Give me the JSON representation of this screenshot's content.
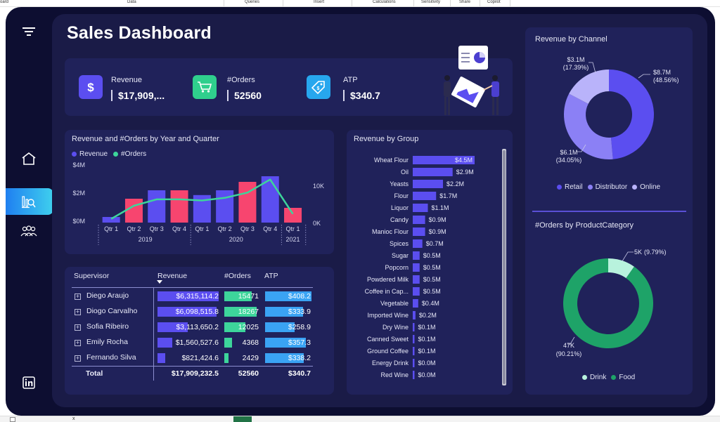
{
  "host": {
    "ribbon_tabs": [
      "oard",
      "Data",
      "Queries",
      "Insert",
      "Calculations",
      "Sensitivity",
      "Share",
      "Copilot"
    ],
    "status_close": "x"
  },
  "colors": {
    "frame_bg": "#0d0e31",
    "canvas_bg": "#1a1b47",
    "card_bg": "#20225a",
    "revenue": "#5b4ef0",
    "orders": "#3dd59b",
    "atp": "#3aa3f4",
    "pink": "#f7456f",
    "food": "#1ea368",
    "drink": "#b8f2dd"
  },
  "nav": [
    "menu-icon",
    "home-icon",
    "analytics-icon",
    "users-icon",
    "linkedin-icon"
  ],
  "dashboard": {
    "title": "Sales Dashboard"
  },
  "kpis": [
    {
      "label": "Revenue",
      "value": "$17,909,...",
      "icon": "dollar-icon",
      "color": "#5b4ef0"
    },
    {
      "label": "#Orders",
      "value": "52560",
      "icon": "cart-icon",
      "color": "#2fcf8d"
    },
    {
      "label": "ATP",
      "value": "$340.7",
      "icon": "tag-icon",
      "color": "#27a7ee"
    }
  ],
  "combo_chart": {
    "title": "Revenue and #Orders by Year and Quarter",
    "legend": [
      {
        "name": "Revenue",
        "color": "#5b4ef0"
      },
      {
        "name": "#Orders",
        "color": "#3dd59b"
      }
    ],
    "y_left_ticks": [
      "$4M",
      "$2M",
      "$0M"
    ],
    "y_right_ticks": [
      "10K",
      "0K"
    ],
    "quarters": [
      "Qtr 1",
      "Qtr 2",
      "Qtr 3",
      "Qtr 4",
      "Qtr 1",
      "Qtr 2",
      "Qtr 3",
      "Qtr 4",
      "Qtr 1"
    ],
    "years": [
      "2019",
      "2020",
      "2021"
    ]
  },
  "chart_data": [
    {
      "type": "bar",
      "title": "Revenue and #Orders by Year and Quarter",
      "categories": [
        "2019 Qtr 1",
        "2019 Qtr 2",
        "2019 Qtr 3",
        "2019 Qtr 4",
        "2020 Qtr 1",
        "2020 Qtr 2",
        "2020 Qtr 3",
        "2020 Qtr 4",
        "2021 Qtr 1"
      ],
      "series": [
        {
          "name": "Revenue",
          "kind": "bar",
          "values": [
            0.4,
            1.7,
            2.3,
            2.3,
            1.96,
            2.3,
            2.9,
            3.3,
            1.05
          ],
          "colors": [
            "#5b4ef0",
            "#f7456f",
            "#5b4ef0",
            "#f7456f",
            "#5b4ef0",
            "#5b4ef0",
            "#f7456f",
            "#5b4ef0",
            "#f7456f"
          ]
        },
        {
          "name": "#Orders",
          "kind": "line",
          "values": [
            1000,
            4500,
            6200,
            6200,
            5900,
            6600,
            8000,
            11500,
            2300
          ]
        }
      ],
      "ylim": [
        0,
        4
      ],
      "y2lim": [
        0,
        15000
      ]
    },
    {
      "type": "bar",
      "title": "Revenue by Group",
      "orientation": "horizontal",
      "categories": [
        "Wheat Flour",
        "Oil",
        "Yeasts",
        "Flour",
        "Liquor",
        "Candy",
        "Manioc Flour",
        "Spices",
        "Sugar",
        "Popcorn",
        "Powdered Milk",
        "Coffee in Cap...",
        "Vegetable",
        "Imported Wine",
        "Dry Wine",
        "Canned Sweet",
        "Ground Coffee",
        "Energy Drink",
        "Red Wine"
      ],
      "values": [
        4.5,
        2.9,
        2.2,
        1.7,
        1.1,
        0.9,
        0.9,
        0.7,
        0.5,
        0.5,
        0.5,
        0.5,
        0.4,
        0.2,
        0.1,
        0.1,
        0.1,
        0.0,
        0.0
      ],
      "labels": [
        "$4.5M",
        "$2.9M",
        "$2.2M",
        "$1.7M",
        "$1.1M",
        "$0.9M",
        "$0.9M",
        "$0.7M",
        "$0.5M",
        "$0.5M",
        "$0.5M",
        "$0.5M",
        "$0.4M",
        "$0.2M",
        "$0.1M",
        "$0.1M",
        "$0.1M",
        "$0.0M",
        "$0.0M"
      ]
    },
    {
      "type": "pie",
      "title": "Revenue by Channel",
      "categories": [
        "Retail",
        "Distributor",
        "Online"
      ],
      "values": [
        48.56,
        34.05,
        17.39
      ],
      "labels": [
        {
          "value": "$8.7M",
          "pct": "(48.56%)"
        },
        {
          "value": "$6.1M",
          "pct": "(34.05%)"
        },
        {
          "value": "$3.1M",
          "pct": "(17.39%)"
        }
      ],
      "colors": [
        "#5b4ef0",
        "#8b80f5",
        "#b9b3fa"
      ]
    },
    {
      "type": "pie",
      "title": "#Orders by ProductCategory",
      "categories": [
        "Drink",
        "Food"
      ],
      "values": [
        9.79,
        90.21
      ],
      "labels": [
        {
          "value": "5K",
          "pct": "(9.79%)"
        },
        {
          "value": "47K",
          "pct": "(90.21%)"
        }
      ],
      "colors": [
        "#b8f2dd",
        "#1ea368"
      ]
    }
  ],
  "table": {
    "headers": {
      "supervisor": "Supervisor",
      "revenue": "Revenue",
      "orders": "#Orders",
      "atp": "ATP"
    },
    "rows": [
      {
        "name": "Diego Araujo",
        "revenue": "$6,315,114.2",
        "orders": "15471",
        "atp": "$408.2",
        "rev_frac": 1.0,
        "ord_frac": 0.85,
        "atp_frac": 1.0
      },
      {
        "name": "Diogo Carvalho",
        "revenue": "$6,098,515.8",
        "orders": "18267",
        "atp": "$333.9",
        "rev_frac": 0.965,
        "ord_frac": 1.0,
        "atp_frac": 0.82
      },
      {
        "name": "Sofia Ribeiro",
        "revenue": "$3,113,650.2",
        "orders": "12025",
        "atp": "$258.9",
        "rev_frac": 0.49,
        "ord_frac": 0.66,
        "atp_frac": 0.63
      },
      {
        "name": "Emily Rocha",
        "revenue": "$1,560,527.6",
        "orders": "4368",
        "atp": "$357.3",
        "rev_frac": 0.245,
        "ord_frac": 0.24,
        "atp_frac": 0.875
      },
      {
        "name": "Fernando Silva",
        "revenue": "$821,424.6",
        "orders": "2429",
        "atp": "$338.2",
        "rev_frac": 0.13,
        "ord_frac": 0.135,
        "atp_frac": 0.83
      }
    ],
    "total": {
      "label": "Total",
      "revenue": "$17,909,232.5",
      "orders": "52560",
      "atp": "$340.7"
    }
  }
}
